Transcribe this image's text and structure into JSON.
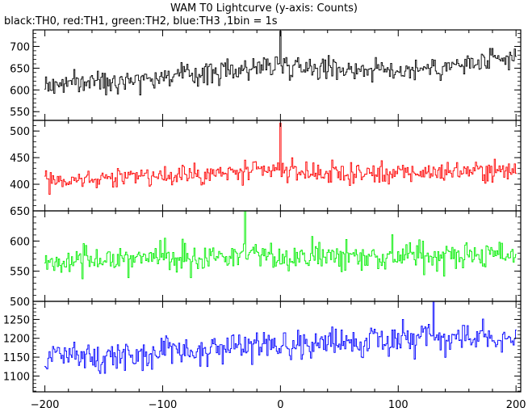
{
  "title": "WAM T0 Lightcurve (y-axis: Counts)",
  "subtitle": "black:TH0, red:TH1, green:TH2, blue:TH3 ,1bin = 1s",
  "chart_data": {
    "type": "line",
    "title": "WAM T0 Lightcurve (y-axis: Counts)",
    "subtitle": "black:TH0, red:TH1, green:TH2, blue:TH3 ,1bin = 1s",
    "xlabel": "",
    "ylabel": "",
    "xlim": [
      -210,
      204
    ],
    "x_ticks": [
      -200,
      -100,
      0,
      100,
      200
    ],
    "x_tick_labels": [
      "−200",
      "−100",
      "0",
      "100",
      "200"
    ],
    "grid": false,
    "panels": [
      {
        "channel": "TH0",
        "color": "#000000",
        "ylim": [
          530,
          738
        ],
        "y_ticks": [
          550,
          600,
          650,
          700
        ],
        "trend": [
          [
            -200,
            610
          ],
          [
            -150,
            622
          ],
          [
            -100,
            630
          ],
          [
            -50,
            642
          ],
          [
            0,
            660
          ],
          [
            50,
            650
          ],
          [
            100,
            645
          ],
          [
            150,
            655
          ],
          [
            200,
            670
          ]
        ],
        "noise_sd": 22,
        "max_spike": [
          0,
          735
        ]
      },
      {
        "channel": "TH1",
        "color": "#ff0000",
        "ylim": [
          350,
          520
        ],
        "y_ticks": [
          400,
          450,
          500
        ],
        "trend": [
          [
            -200,
            405
          ],
          [
            -150,
            412
          ],
          [
            -100,
            415
          ],
          [
            -50,
            420
          ],
          [
            0,
            425
          ],
          [
            50,
            420
          ],
          [
            100,
            420
          ],
          [
            150,
            425
          ],
          [
            200,
            425
          ]
        ],
        "noise_sd": 16,
        "max_spike": [
          0,
          515
        ]
      },
      {
        "channel": "TH2",
        "color": "#00ee00",
        "ylim": [
          500,
          650
        ],
        "y_ticks": [
          500,
          550,
          600,
          650
        ],
        "trend": [
          [
            -200,
            568
          ],
          [
            -100,
            572
          ],
          [
            0,
            575
          ],
          [
            100,
            575
          ],
          [
            200,
            578
          ]
        ],
        "noise_sd": 20,
        "max_spike": [
          -30,
          650
        ]
      },
      {
        "channel": "TH3",
        "color": "#0000ff",
        "ylim": [
          1058,
          1298
        ],
        "y_ticks": [
          1100,
          1150,
          1200,
          1250
        ],
        "trend": [
          [
            -200,
            1145
          ],
          [
            -150,
            1150
          ],
          [
            -100,
            1165
          ],
          [
            -50,
            1175
          ],
          [
            0,
            1185
          ],
          [
            50,
            1190
          ],
          [
            100,
            1195
          ],
          [
            150,
            1200
          ],
          [
            200,
            1200
          ]
        ],
        "noise_sd": 32,
        "max_spike": [
          130,
          1298
        ]
      }
    ]
  }
}
